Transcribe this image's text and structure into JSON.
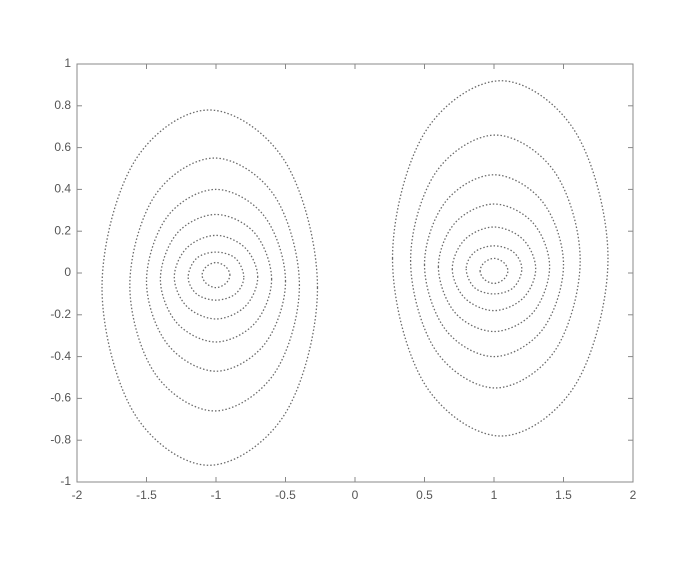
{
  "chart_data": {
    "type": "contour",
    "xlim": [
      -2,
      2
    ],
    "xticks": [
      -2,
      -1.5,
      -1,
      -0.5,
      0,
      0.5,
      1,
      1.5,
      2
    ],
    "ylim": [
      -1,
      1
    ],
    "yticks": [
      -1,
      -0.8,
      -0.6,
      -0.4,
      -0.2,
      0,
      0.2,
      0.4,
      0.6,
      0.8,
      1
    ],
    "line_style": "dotted",
    "series": [
      {
        "color": "#6b6b6b",
        "x": [
          -0.27,
          -0.5,
          -1.05,
          -1.59,
          -1.82,
          -1.59,
          -1.05,
          -0.5
        ],
        "values": [
          -0.07,
          0.53,
          0.78,
          0.53,
          -0.07,
          -0.67,
          -0.92,
          -0.67
        ]
      },
      {
        "color": "#6b6b6b",
        "x": [
          -0.4,
          -0.58,
          -1.01,
          -1.44,
          -1.62,
          -1.44,
          -1.01,
          -0.58
        ],
        "values": [
          -0.06,
          0.37,
          0.55,
          0.37,
          -0.06,
          -0.48,
          -0.66,
          -0.48
        ]
      },
      {
        "color": "#6b6b6b",
        "x": [
          -0.5,
          -0.65,
          -1,
          -1.35,
          -1.5,
          -1.35,
          -1,
          -0.65
        ],
        "values": [
          -0.04,
          0.27,
          0.4,
          0.27,
          -0.04,
          -0.34,
          -0.47,
          -0.34
        ]
      },
      {
        "color": "#6b6b6b",
        "x": [
          -0.6,
          -0.72,
          -1,
          -1.28,
          -1.4,
          -1.28,
          -1,
          -0.72
        ],
        "values": [
          -0.03,
          0.19,
          0.28,
          0.19,
          -0.03,
          -0.24,
          -0.33,
          -0.24
        ]
      },
      {
        "color": "#6b6b6b",
        "x": [
          -0.7,
          -0.79,
          -1,
          -1.21,
          -1.3,
          -1.21,
          -1,
          -0.79
        ],
        "values": [
          -0.02,
          0.12,
          0.18,
          0.12,
          -0.02,
          -0.16,
          -0.22,
          -0.16
        ]
      },
      {
        "color": "#6b6b6b",
        "x": [
          -0.8,
          -0.86,
          -1,
          -1.14,
          -1.2,
          -1.14,
          -1,
          -0.86
        ],
        "values": [
          -0.02,
          0.07,
          0.1,
          0.07,
          -0.02,
          -0.1,
          -0.13,
          -0.1
        ]
      },
      {
        "color": "#6b6b6b",
        "x": [
          -0.9,
          -0.93,
          -1,
          -1.07,
          -1.1,
          -1.07,
          -1,
          -0.93
        ],
        "values": [
          -0.01,
          0.03,
          0.05,
          0.03,
          -0.01,
          -0.05,
          -0.07,
          -0.05
        ]
      },
      {
        "color": "#6b6b6b",
        "x": [
          0.27,
          0.5,
          1.05,
          1.59,
          1.82,
          1.59,
          1.05,
          0.5
        ],
        "values": [
          0.07,
          -0.53,
          -0.78,
          -0.53,
          0.07,
          0.67,
          0.92,
          0.67
        ]
      },
      {
        "color": "#6b6b6b",
        "x": [
          0.4,
          0.58,
          1.01,
          1.44,
          1.62,
          1.44,
          1.01,
          0.58
        ],
        "values": [
          0.06,
          -0.37,
          -0.55,
          -0.37,
          0.06,
          0.48,
          0.66,
          0.48
        ]
      },
      {
        "color": "#6b6b6b",
        "x": [
          0.5,
          0.65,
          1,
          1.35,
          1.5,
          1.35,
          1,
          0.65
        ],
        "values": [
          0.04,
          -0.27,
          -0.4,
          -0.27,
          0.04,
          0.34,
          0.47,
          0.34
        ]
      },
      {
        "color": "#6b6b6b",
        "x": [
          0.6,
          0.72,
          1,
          1.28,
          1.4,
          1.28,
          1,
          0.72
        ],
        "values": [
          0.03,
          -0.19,
          -0.28,
          -0.19,
          0.03,
          0.24,
          0.33,
          0.24
        ]
      },
      {
        "color": "#6b6b6b",
        "x": [
          0.7,
          0.79,
          1,
          1.21,
          1.3,
          1.21,
          1,
          0.79
        ],
        "values": [
          0.02,
          -0.12,
          -0.18,
          -0.12,
          0.02,
          0.16,
          0.22,
          0.16
        ]
      },
      {
        "color": "#6b6b6b",
        "x": [
          0.8,
          0.86,
          1,
          1.14,
          1.2,
          1.14,
          1,
          0.86
        ],
        "values": [
          0.02,
          -0.07,
          -0.1,
          -0.07,
          0.02,
          0.1,
          0.13,
          0.1
        ]
      },
      {
        "color": "#6b6b6b",
        "x": [
          0.9,
          0.93,
          1,
          1.07,
          1.1,
          1.07,
          1,
          0.93
        ],
        "values": [
          0.01,
          -0.03,
          -0.05,
          -0.03,
          0.01,
          0.05,
          0.07,
          0.05
        ]
      }
    ]
  }
}
